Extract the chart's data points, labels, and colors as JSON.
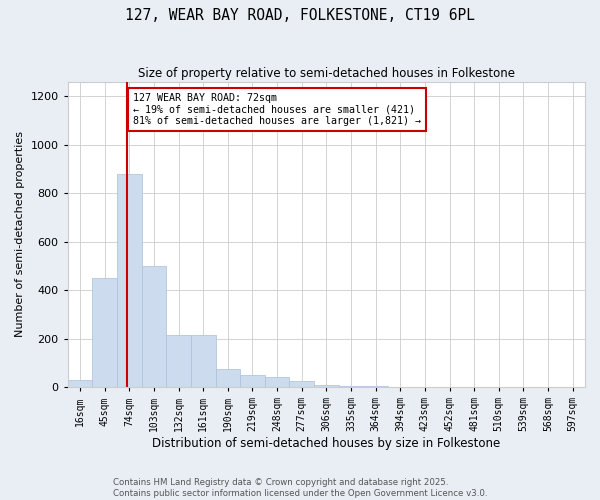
{
  "title": "127, WEAR BAY ROAD, FOLKESTONE, CT19 6PL",
  "subtitle": "Size of property relative to semi-detached houses in Folkestone",
  "xlabel": "Distribution of semi-detached houses by size in Folkestone",
  "ylabel": "Number of semi-detached properties",
  "categories": [
    "16sqm",
    "45sqm",
    "74sqm",
    "103sqm",
    "132sqm",
    "161sqm",
    "190sqm",
    "219sqm",
    "248sqm",
    "277sqm",
    "306sqm",
    "335sqm",
    "364sqm",
    "394sqm",
    "423sqm",
    "452sqm",
    "481sqm",
    "510sqm",
    "539sqm",
    "568sqm",
    "597sqm"
  ],
  "values": [
    30,
    450,
    880,
    500,
    215,
    215,
    75,
    50,
    40,
    25,
    10,
    5,
    3,
    2,
    1,
    1,
    0,
    0,
    0,
    0,
    0
  ],
  "bar_color": "#ccdcee",
  "bar_edge_color": "#aac0d8",
  "property_sqm": 72,
  "property_label": "127 WEAR BAY ROAD: 72sqm",
  "smaller_pct": 19,
  "smaller_count": 421,
  "larger_pct": 81,
  "larger_count": 1821,
  "annotation_box_color": "#ffffff",
  "annotation_box_edge": "#cc0000",
  "line_color": "#cc0000",
  "ylim": [
    0,
    1260
  ],
  "yticks": [
    0,
    200,
    400,
    600,
    800,
    1000,
    1200
  ],
  "footer1": "Contains HM Land Registry data © Crown copyright and database right 2025.",
  "footer2": "Contains public sector information licensed under the Open Government Licence v3.0.",
  "bg_color": "#e8eef4",
  "plot_bg_color": "#ffffff"
}
